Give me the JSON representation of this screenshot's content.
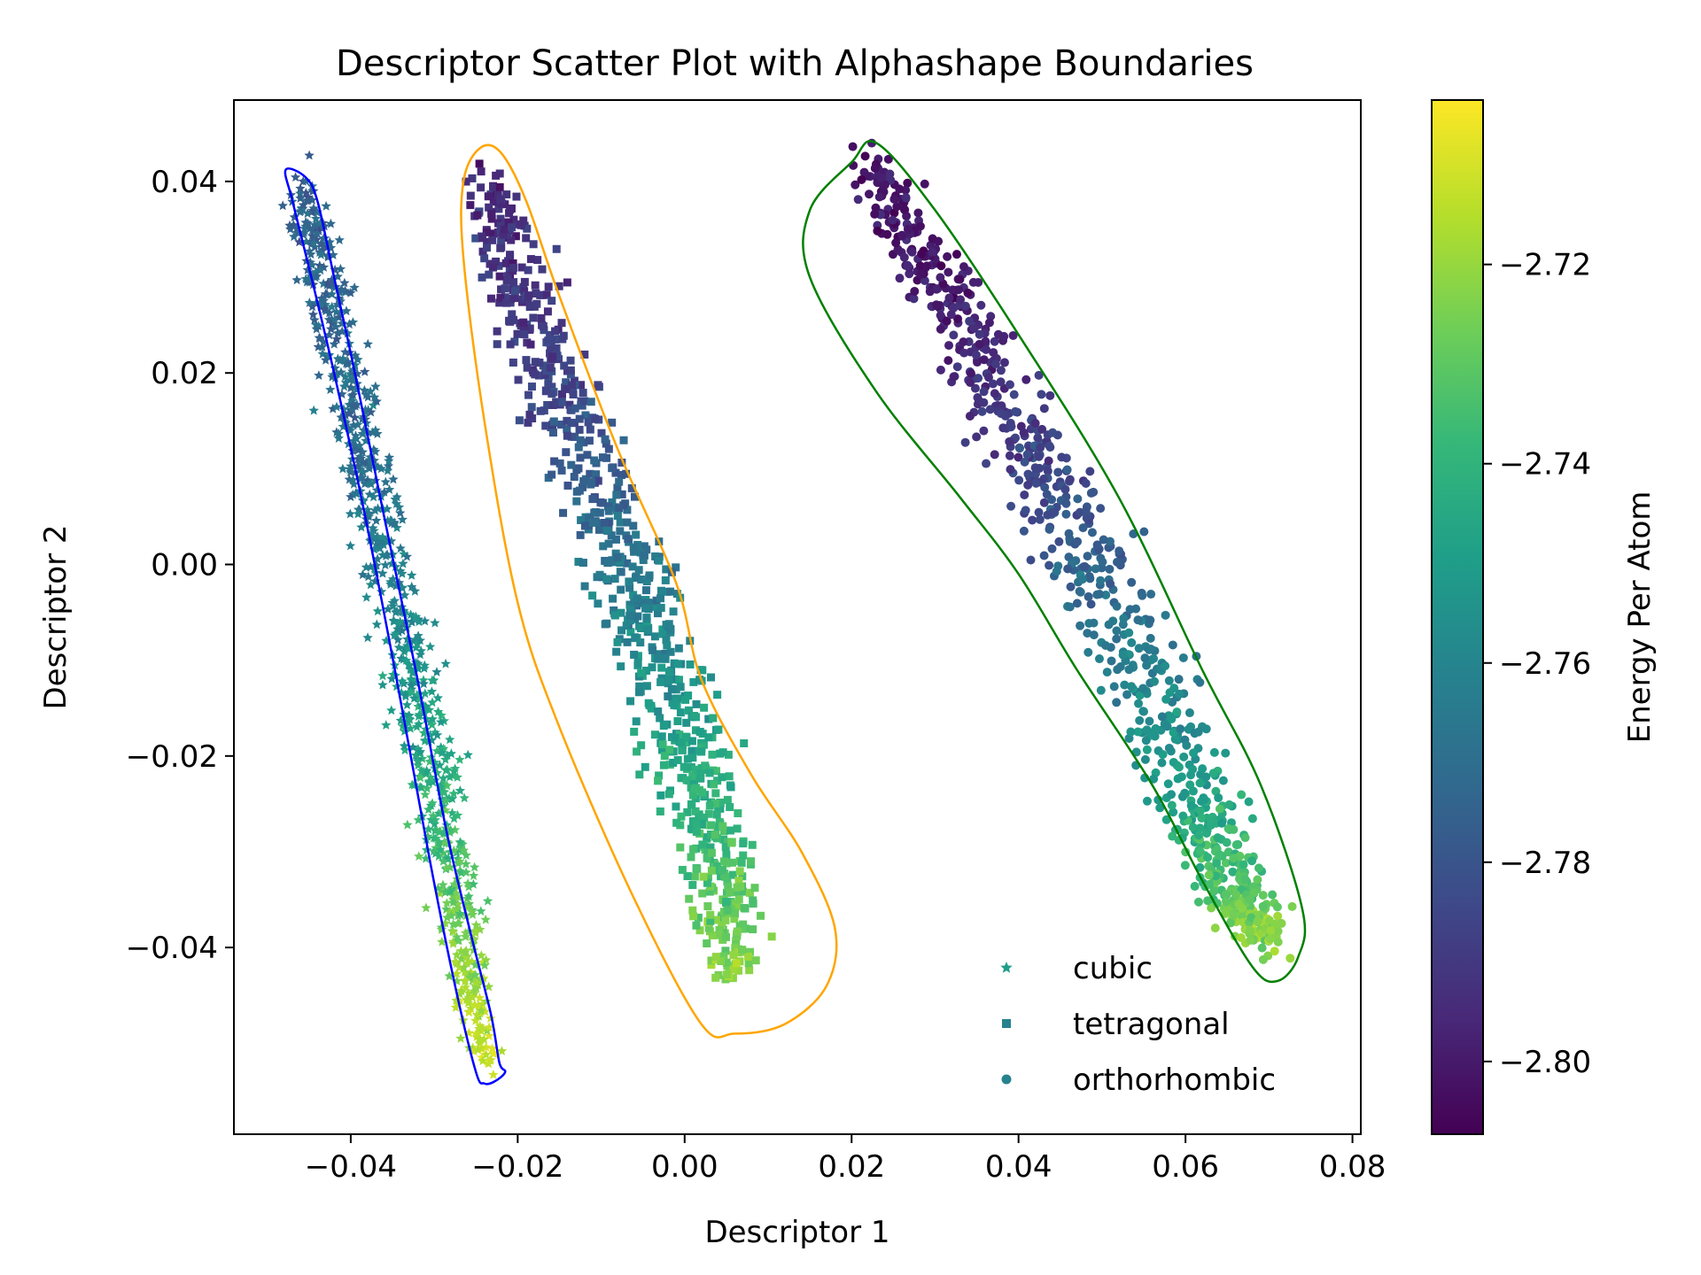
{
  "chart_data": {
    "type": "scatter",
    "title": "Descriptor Scatter Plot with Alphashape Boundaries",
    "xlabel": "Descriptor 1",
    "ylabel": "Descriptor 2",
    "xlim": [
      -0.054,
      0.081
    ],
    "ylim": [
      -0.0595,
      0.0485
    ],
    "xticks": [
      -0.04,
      -0.02,
      0.0,
      0.02,
      0.04,
      0.06,
      0.08
    ],
    "xtick_labels": [
      "−0.04",
      "−0.02",
      "0.00",
      "0.02",
      "0.04",
      "0.06",
      "0.08"
    ],
    "yticks": [
      -0.04,
      -0.02,
      0.0,
      0.02,
      0.04
    ],
    "ytick_labels": [
      "−0.04",
      "−0.02",
      "0.00",
      "0.02",
      "0.04"
    ],
    "grid": false,
    "legend_position": "lower-right",
    "colorbar": {
      "label": "Energy Per Atom",
      "colormap": "viridis",
      "range": [
        -2.8073,
        -2.7035
      ],
      "ticks": [
        -2.72,
        -2.74,
        -2.76,
        -2.78,
        -2.8
      ],
      "tick_labels": [
        "−2.72",
        "−2.74",
        "−2.76",
        "−2.78",
        "−2.80"
      ],
      "colors": [
        "#440154",
        "#482878",
        "#3e4989",
        "#31688e",
        "#26828e",
        "#1f9e89",
        "#35b779",
        "#6ece58",
        "#b5de2b",
        "#fde725"
      ]
    },
    "series": [
      {
        "name": "cubic",
        "marker": "star",
        "legend_color": "#1f9e89",
        "boundary_color": "#0000ff",
        "spine": [
          {
            "x": -0.046,
            "y": 0.04,
            "w": 0.002,
            "e": -2.775
          },
          {
            "x": -0.042,
            "y": 0.025,
            "w": 0.0025,
            "e": -2.772
          },
          {
            "x": -0.038,
            "y": 0.01,
            "w": 0.003,
            "e": -2.768
          },
          {
            "x": -0.034,
            "y": -0.006,
            "w": 0.003,
            "e": -2.758
          },
          {
            "x": -0.03,
            "y": -0.022,
            "w": 0.003,
            "e": -2.742
          },
          {
            "x": -0.027,
            "y": -0.036,
            "w": 0.0025,
            "e": -2.728
          },
          {
            "x": -0.024,
            "y": -0.052,
            "w": 0.0015,
            "e": -2.71
          }
        ],
        "boundary": [
          [
            -0.0478,
            0.0412
          ],
          [
            -0.0455,
            0.0405
          ],
          [
            -0.044,
            0.038
          ],
          [
            -0.042,
            0.03
          ],
          [
            -0.0395,
            0.02
          ],
          [
            -0.036,
            0.005
          ],
          [
            -0.032,
            -0.012
          ],
          [
            -0.0285,
            -0.028
          ],
          [
            -0.0255,
            -0.039
          ],
          [
            -0.0232,
            -0.047
          ],
          [
            -0.0222,
            -0.052
          ],
          [
            -0.0215,
            -0.053
          ],
          [
            -0.0228,
            -0.054
          ],
          [
            -0.024,
            -0.0542
          ],
          [
            -0.025,
            -0.053
          ],
          [
            -0.0275,
            -0.044
          ],
          [
            -0.0305,
            -0.031
          ],
          [
            -0.0345,
            -0.012
          ],
          [
            -0.0385,
            0.006
          ],
          [
            -0.042,
            0.02
          ],
          [
            -0.045,
            0.031
          ],
          [
            -0.047,
            0.038
          ],
          [
            -0.0478,
            0.0412
          ]
        ]
      },
      {
        "name": "tetragonal",
        "marker": "square",
        "legend_color": "#26828e",
        "boundary_color": "#ffa500",
        "spine": [
          {
            "x": -0.024,
            "y": 0.04,
            "w": 0.003,
            "e": -2.795
          },
          {
            "x": -0.018,
            "y": 0.025,
            "w": 0.004,
            "e": -2.79
          },
          {
            "x": -0.011,
            "y": 0.01,
            "w": 0.0045,
            "e": -2.778
          },
          {
            "x": -0.005,
            "y": -0.005,
            "w": 0.0045,
            "e": -2.762
          },
          {
            "x": 0.0,
            "y": -0.018,
            "w": 0.0045,
            "e": -2.748
          },
          {
            "x": 0.004,
            "y": -0.03,
            "w": 0.004,
            "e": -2.735
          },
          {
            "x": 0.006,
            "y": -0.042,
            "w": 0.003,
            "e": -2.722
          }
        ],
        "boundary": [
          [
            -0.0265,
            0.04
          ],
          [
            -0.0245,
            0.0435
          ],
          [
            -0.022,
            0.043
          ],
          [
            -0.019,
            0.038
          ],
          [
            -0.015,
            0.028
          ],
          [
            -0.008,
            0.012
          ],
          [
            -0.001,
            -0.002
          ],
          [
            0.002,
            -0.012
          ],
          [
            0.008,
            -0.022
          ],
          [
            0.014,
            -0.03
          ],
          [
            0.018,
            -0.038
          ],
          [
            0.017,
            -0.044
          ],
          [
            0.012,
            -0.048
          ],
          [
            0.006,
            -0.049
          ],
          [
            0.002,
            -0.048
          ],
          [
            -0.006,
            -0.035
          ],
          [
            -0.015,
            -0.017
          ],
          [
            -0.02,
            -0.004
          ],
          [
            -0.024,
            0.015
          ],
          [
            -0.0265,
            0.032
          ],
          [
            -0.0265,
            0.04
          ]
        ]
      },
      {
        "name": "orthorhombic",
        "marker": "circle",
        "legend_color": "#26828e",
        "boundary_color": "#008000",
        "spine": [
          {
            "x": 0.022,
            "y": 0.042,
            "w": 0.002,
            "e": -2.802
          },
          {
            "x": 0.03,
            "y": 0.03,
            "w": 0.004,
            "e": -2.8
          },
          {
            "x": 0.039,
            "y": 0.017,
            "w": 0.005,
            "e": -2.792
          },
          {
            "x": 0.047,
            "y": 0.003,
            "w": 0.005,
            "e": -2.778
          },
          {
            "x": 0.055,
            "y": -0.011,
            "w": 0.005,
            "e": -2.762
          },
          {
            "x": 0.061,
            "y": -0.024,
            "w": 0.0045,
            "e": -2.748
          },
          {
            "x": 0.066,
            "y": -0.034,
            "w": 0.004,
            "e": -2.732
          },
          {
            "x": 0.07,
            "y": -0.039,
            "w": 0.0025,
            "e": -2.72
          }
        ],
        "boundary": [
          [
            0.015,
            0.037
          ],
          [
            0.02,
            0.042
          ],
          [
            0.023,
            0.044
          ],
          [
            0.03,
            0.037
          ],
          [
            0.04,
            0.024
          ],
          [
            0.052,
            0.007
          ],
          [
            0.062,
            -0.011
          ],
          [
            0.069,
            -0.023
          ],
          [
            0.074,
            -0.036
          ],
          [
            0.0735,
            -0.041
          ],
          [
            0.071,
            -0.0435
          ],
          [
            0.068,
            -0.042
          ],
          [
            0.062,
            -0.033
          ],
          [
            0.056,
            -0.023
          ],
          [
            0.047,
            -0.011
          ],
          [
            0.04,
            -0.001
          ],
          [
            0.033,
            0.007
          ],
          [
            0.023,
            0.018
          ],
          [
            0.015,
            0.03
          ],
          [
            0.015,
            0.037
          ]
        ]
      }
    ]
  }
}
